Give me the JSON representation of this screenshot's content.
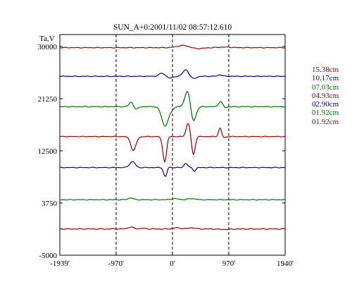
{
  "chart_data": {
    "type": "line",
    "title": "SUN_A+0:2001/11/02 08:57:12.610",
    "ylabel": "Ta,V",
    "xlabel": "",
    "x_unit": "arcsec",
    "xlim": [
      -1939,
      1940
    ],
    "ylim": [
      -5000,
      32000
    ],
    "x_ticks": [
      -1939,
      -970,
      0,
      970,
      1940
    ],
    "x_tick_labels": [
      "-1939'",
      "-970'",
      "0'",
      "970'",
      "1940'"
    ],
    "y_ticks": [
      30000,
      21250,
      12500,
      3750,
      -5000
    ],
    "y_tick_labels": [
      "30000",
      "21250",
      "12500",
      "3750",
      "-5000"
    ],
    "vlines_x": [
      -970,
      0,
      970
    ],
    "grid": false,
    "legend_position": "right",
    "series": [
      {
        "name": "15.38cm",
        "color": "#8b0000",
        "baseline": 29800,
        "features": [
          [
            -1700,
            0,
            200
          ],
          [
            0,
            0,
            200
          ],
          [
            200,
            400,
            110
          ],
          [
            400,
            -200,
            110
          ],
          [
            900,
            100,
            100
          ]
        ]
      },
      {
        "name": "10.17cm",
        "color": "#00008b",
        "baseline": 25000,
        "features": [
          [
            -1800,
            0,
            200
          ],
          [
            -180,
            500,
            50
          ],
          [
            -40,
            -300,
            50
          ],
          [
            230,
            1100,
            50
          ],
          [
            360,
            -400,
            50
          ],
          [
            820,
            250,
            40
          ]
        ]
      },
      {
        "name": "07.03cm",
        "color": "#007000",
        "baseline": 19900,
        "features": [
          [
            -1800,
            0,
            200
          ],
          [
            -700,
            900,
            40
          ],
          [
            -640,
            -600,
            40
          ],
          [
            -130,
            -3200,
            55
          ],
          [
            -30,
            -500,
            45
          ],
          [
            260,
            2800,
            45
          ],
          [
            360,
            -2500,
            45
          ],
          [
            830,
            900,
            35
          ],
          [
            900,
            -200,
            35
          ]
        ]
      },
      {
        "name": "04.93cm",
        "color": "#8b0000",
        "baseline": 14900,
        "features": [
          [
            -660,
            -2700,
            50
          ],
          [
            -620,
            800,
            35
          ],
          [
            -130,
            -4300,
            35
          ],
          [
            -85,
            600,
            25
          ],
          [
            270,
            2200,
            35
          ],
          [
            360,
            -3100,
            30
          ],
          [
            820,
            1400,
            25
          ],
          [
            890,
            -200,
            30
          ]
        ]
      },
      {
        "name": "02.90cm",
        "color": "#00008b",
        "baseline": 9700,
        "features": [
          [
            -700,
            800,
            45
          ],
          [
            -660,
            300,
            35
          ],
          [
            -120,
            -1600,
            30
          ],
          [
            -80,
            300,
            25
          ],
          [
            230,
            700,
            30
          ],
          [
            380,
            -600,
            25
          ]
        ]
      },
      {
        "name": "01.92cm",
        "color": "#007000",
        "baseline": 4300,
        "features": [
          [
            -720,
            300,
            45
          ],
          [
            40,
            200,
            60
          ],
          [
            330,
            200,
            60
          ]
        ]
      },
      {
        "name": "01.92cm",
        "color": "#8b0000",
        "baseline": -600,
        "features": [
          [
            -720,
            300,
            50
          ],
          [
            -500,
            100,
            50
          ],
          [
            80,
            200,
            60
          ],
          [
            330,
            200,
            60
          ],
          [
            900,
            -80,
            80
          ]
        ]
      }
    ]
  }
}
